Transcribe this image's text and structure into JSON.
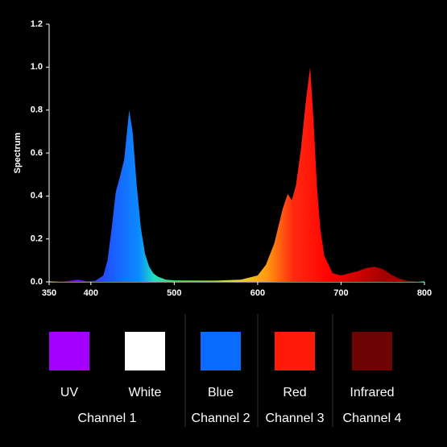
{
  "chart_data": {
    "type": "area",
    "y_label": "Spectrum",
    "x": [
      350,
      370,
      385,
      395,
      405,
      415,
      420,
      425,
      430,
      435,
      440,
      446,
      450,
      455,
      460,
      465,
      470,
      475,
      480,
      490,
      500,
      550,
      580,
      600,
      610,
      620,
      630,
      636,
      641,
      646,
      652,
      658,
      663,
      667,
      671,
      675,
      680,
      690,
      700,
      710,
      720,
      730,
      740,
      750,
      760,
      770,
      780,
      800
    ],
    "values": [
      0,
      0.003,
      0.01,
      0.003,
      0.005,
      0.03,
      0.1,
      0.25,
      0.42,
      0.49,
      0.57,
      0.8,
      0.7,
      0.45,
      0.25,
      0.13,
      0.07,
      0.04,
      0.025,
      0.01,
      0.007,
      0.006,
      0.01,
      0.03,
      0.08,
      0.18,
      0.34,
      0.41,
      0.38,
      0.45,
      0.62,
      0.85,
      1.0,
      0.75,
      0.45,
      0.25,
      0.12,
      0.04,
      0.03,
      0.04,
      0.05,
      0.065,
      0.07,
      0.06,
      0.035,
      0.015,
      0.005,
      0
    ],
    "xlim": [
      350,
      800
    ],
    "xticks": [
      350,
      400,
      500,
      600,
      700,
      800
    ],
    "ylim": [
      0,
      1.2
    ],
    "yticks": [
      {
        "value": 0,
        "label": "0.0"
      },
      0.2,
      0.4,
      0.6,
      0.8,
      {
        "value": 1,
        "label": "1.0"
      },
      1.2
    ],
    "legend_items": [
      {
        "name": "UV",
        "color": "#a500ff"
      },
      {
        "name": "White",
        "color": "#ffffff"
      },
      {
        "name": "Blue",
        "color": "#0a6cff"
      },
      {
        "name": "Red",
        "color": "#ff1a0a"
      },
      {
        "name": "Infrared",
        "color": "#6e0404"
      }
    ],
    "channels": [
      "Channel 1",
      "Channel 2",
      "Channel 3",
      "Channel 4"
    ]
  }
}
